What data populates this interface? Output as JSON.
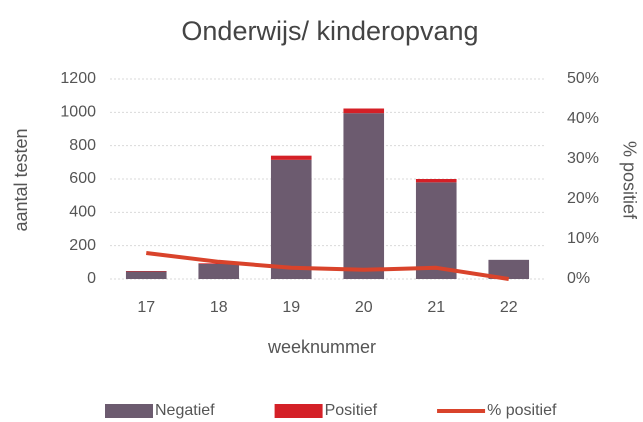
{
  "chart_data": {
    "type": "bar",
    "title": "Onderwijs/ kinderopvang",
    "x_label": "weeknummer",
    "y_label": "aantal testen",
    "y2_label": "% positief",
    "categories": [
      "17",
      "18",
      "19",
      "20",
      "21",
      "22"
    ],
    "series": [
      {
        "name": "Negatief",
        "type": "bar",
        "color": "#6c5b6f",
        "values": [
          45,
          90,
          715,
          995,
          580,
          115
        ]
      },
      {
        "name": "Positief",
        "type": "bar",
        "color": "#d42027",
        "values": [
          3,
          4,
          25,
          28,
          20,
          0
        ]
      },
      {
        "name": "% positief",
        "type": "line",
        "axis": "y2",
        "color": "#d9432b",
        "values": [
          6.5,
          4.3,
          2.8,
          2.3,
          2.8,
          0
        ]
      }
    ],
    "ylim": [
      0,
      1200
    ],
    "yticks": [
      0,
      200,
      400,
      600,
      800,
      1000,
      1200
    ],
    "y2lim": [
      0,
      50
    ],
    "y2ticks": [
      {
        "value": 0,
        "label": "0%"
      },
      {
        "value": 10,
        "label": "10%"
      },
      {
        "value": 20,
        "label": "20%"
      },
      {
        "value": 30,
        "label": "30%"
      },
      {
        "value": 40,
        "label": "40%"
      },
      {
        "value": 50,
        "label": "50%"
      }
    ],
    "stacked": true,
    "grid": true,
    "legend": "bottom"
  }
}
